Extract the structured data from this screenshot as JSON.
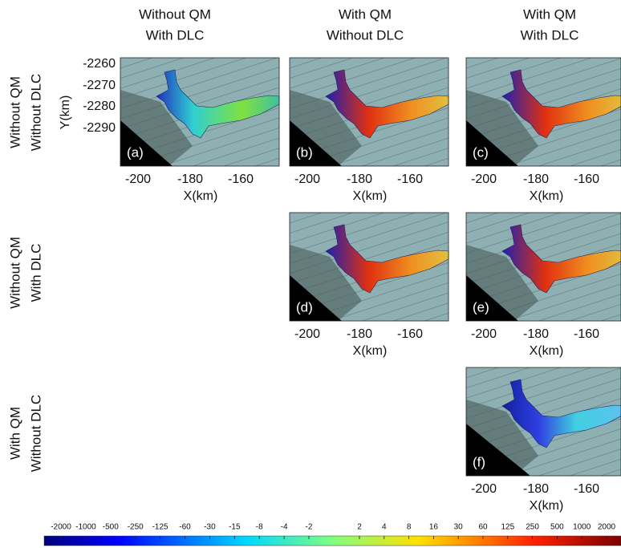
{
  "columns": [
    {
      "line1": "Without QM",
      "line2": "With DLC"
    },
    {
      "line1": "With QM",
      "line2": "Without DLC"
    },
    {
      "line1": "With QM",
      "line2": "With DLC"
    }
  ],
  "rows": [
    {
      "line1": "Without QM",
      "line2": "Without DLC"
    },
    {
      "line1": "Without QM",
      "line2": "With DLC"
    },
    {
      "line1": "With QM",
      "line2": "Without DLC"
    }
  ],
  "panels": [
    {
      "label": "(a)",
      "x_ticks": [
        -200,
        -180,
        -160
      ],
      "x_label": "X(km)",
      "y_ticks": [
        -2260,
        -2270,
        -2280,
        -2290
      ],
      "y_label": "Y(km)"
    },
    {
      "label": "(b)",
      "x_ticks": [
        -200,
        -180,
        -160
      ],
      "x_label": "X(km)"
    },
    {
      "label": "(c)",
      "x_ticks": [
        -200,
        -180,
        -160
      ],
      "x_label": "X(km)"
    },
    {
      "label": "(d)",
      "x_ticks": [
        -200,
        -180,
        -160
      ],
      "x_label": "X(km)"
    },
    {
      "label": "(e)",
      "x_ticks": [
        -200,
        -180,
        -160
      ],
      "x_label": "X(km)"
    },
    {
      "label": "(f)",
      "x_ticks": [
        -200,
        -180,
        -160
      ],
      "x_label": "X(km)"
    }
  ],
  "colorbar_ticks": [
    -2000,
    -1000,
    -500,
    -250,
    -125,
    -60,
    -30,
    -15,
    -8,
    -4,
    -2,
    2,
    4,
    8,
    16,
    30,
    60,
    125,
    250,
    500,
    1000,
    2000
  ]
}
